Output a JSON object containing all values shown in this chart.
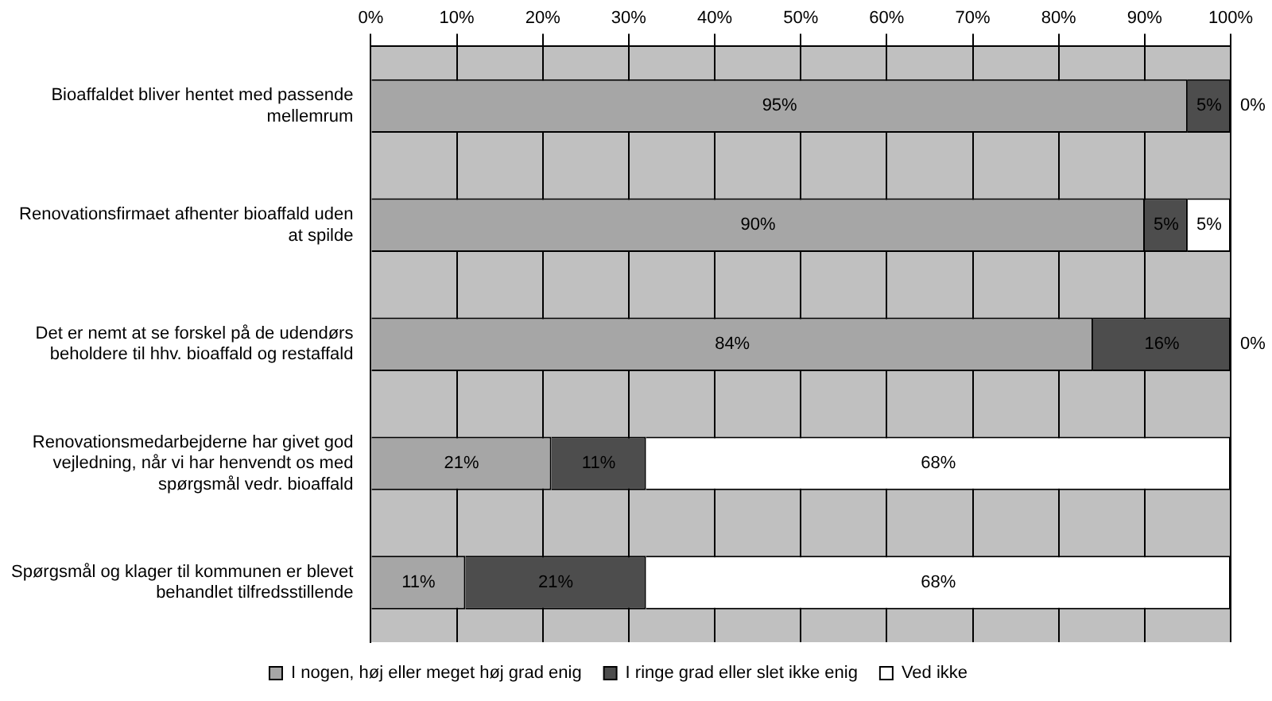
{
  "chart_data": {
    "type": "bar",
    "orientation": "horizontal",
    "stacked": true,
    "categories": [
      "Bioaffaldet bliver hentet med passende mellemrum",
      "Renovationsfirmaet afhenter bioaffald uden at spilde",
      "Det er nemt at se forskel på de udendørs beholdere til hhv. bioaffald og restaffald",
      "Renovationsmedarbejderne har givet god vejledning, når vi har henvendt os med spørgsmål vedr. bioaffald",
      "Spørgsmål og klager til kommunen er blevet behandlet tilfredsstillende"
    ],
    "series": [
      {
        "name": "I nogen, høj eller meget høj grad enig",
        "color": "#a6a6a6",
        "values": [
          95,
          90,
          84,
          21,
          11
        ],
        "value_labels": [
          "95%",
          "90%",
          "84%",
          "21%",
          "11%"
        ]
      },
      {
        "name": "I ringe grad eller slet ikke enig",
        "color": "#4d4d4d",
        "values": [
          5,
          5,
          16,
          11,
          21
        ],
        "value_labels": [
          "5%",
          "5%",
          "16%",
          "11%",
          "21%"
        ]
      },
      {
        "name": "Ved ikke",
        "color": "#ffffff",
        "values": [
          0,
          5,
          0,
          68,
          68
        ],
        "value_labels": [
          "0%",
          "5%",
          "0%",
          "68%",
          "68%"
        ]
      }
    ],
    "xlim": [
      0,
      100
    ],
    "xticks": [
      {
        "value": 0,
        "label": "0%"
      },
      {
        "value": 10,
        "label": "10%"
      },
      {
        "value": 20,
        "label": "20%"
      },
      {
        "value": 30,
        "label": "30%"
      },
      {
        "value": 40,
        "label": "40%"
      },
      {
        "value": 50,
        "label": "50%"
      },
      {
        "value": 60,
        "label": "60%"
      },
      {
        "value": 70,
        "label": "70%"
      },
      {
        "value": 80,
        "label": "80%"
      },
      {
        "value": 90,
        "label": "90%"
      },
      {
        "value": 100,
        "label": "100%"
      }
    ],
    "grid": "x",
    "legend": "bottom"
  }
}
